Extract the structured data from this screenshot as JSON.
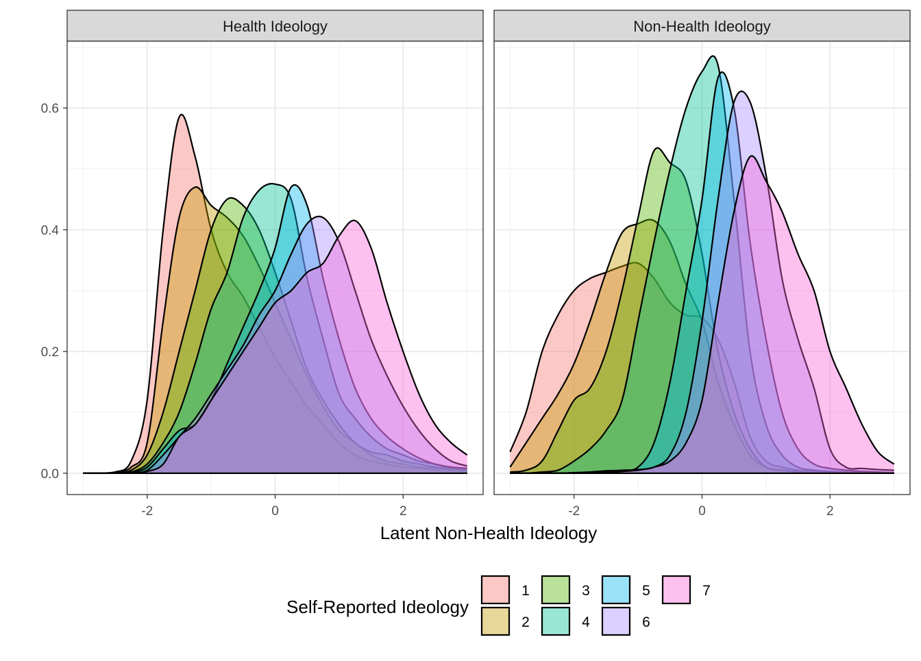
{
  "chart_data": {
    "type": "area",
    "subtype": "density",
    "xlabel": "Latent Non-Health Ideology",
    "ylabel": "",
    "xlim": [
      -3.25,
      3.25
    ],
    "ylim": [
      -0.035,
      0.71
    ],
    "x_ticks": [
      -2,
      0,
      2
    ],
    "x_tick_labels": [
      "-2",
      "0",
      "2"
    ],
    "y_ticks": [
      0,
      0.2,
      0.4,
      0.6
    ],
    "y_tick_labels": [
      "0.0",
      "0.2",
      "0.4",
      "0.6"
    ],
    "grid": true,
    "fill_alpha": 0.4,
    "legend": {
      "title": "Self-Reported Ideology",
      "placement": "bottom",
      "entries": [
        "1",
        "2",
        "3",
        "4",
        "5",
        "6",
        "7"
      ],
      "colors": [
        "#F8766D",
        "#C49A00",
        "#53B400",
        "#00C094",
        "#00B6EB",
        "#A58AFF",
        "#FB61D7"
      ]
    },
    "x": [
      -3,
      -2.75,
      -2.5,
      -2.25,
      -2,
      -1.75,
      -1.5,
      -1.25,
      -1,
      -0.75,
      -0.5,
      -0.25,
      0,
      0.25,
      0.5,
      0.75,
      1,
      1.25,
      1.5,
      1.75,
      2,
      2.25,
      2.5,
      2.75,
      3
    ],
    "panels": [
      {
        "title": "Health Ideology",
        "series": [
          {
            "name": "1",
            "values": [
              0,
              0,
              0.002,
              0.02,
              0.12,
              0.4,
              0.585,
              0.52,
              0.4,
              0.33,
              0.29,
              0.24,
              0.19,
              0.15,
              0.11,
              0.08,
              0.05,
              0.03,
              0.02,
              0.015,
              0.01,
              0.008,
              0.005,
              0.004,
              0.003
            ]
          },
          {
            "name": "2",
            "values": [
              0,
              0,
              0.001,
              0.01,
              0.05,
              0.25,
              0.42,
              0.47,
              0.44,
              0.42,
              0.39,
              0.34,
              0.28,
              0.22,
              0.16,
              0.11,
              0.07,
              0.05,
              0.03,
              0.02,
              0.015,
              0.01,
              0.008,
              0.006,
              0.005
            ]
          },
          {
            "name": "3",
            "values": [
              0,
              0,
              0,
              0.005,
              0.03,
              0.1,
              0.2,
              0.3,
              0.4,
              0.45,
              0.44,
              0.4,
              0.33,
              0.25,
              0.17,
              0.12,
              0.08,
              0.05,
              0.035,
              0.03,
              0.02,
              0.015,
              0.01,
              0.008,
              0.005
            ]
          },
          {
            "name": "4",
            "values": [
              0,
              0,
              0,
              0.002,
              0.015,
              0.05,
              0.1,
              0.18,
              0.27,
              0.33,
              0.42,
              0.465,
              0.475,
              0.45,
              0.32,
              0.22,
              0.13,
              0.09,
              0.06,
              0.04,
              0.03,
              0.02,
              0.015,
              0.01,
              0.008
            ]
          },
          {
            "name": "5",
            "values": [
              0,
              0,
              0,
              0.001,
              0.01,
              0.04,
              0.07,
              0.08,
              0.12,
              0.18,
              0.24,
              0.3,
              0.37,
              0.47,
              0.44,
              0.32,
              0.22,
              0.14,
              0.09,
              0.06,
              0.04,
              0.025,
              0.015,
              0.01,
              0.008
            ]
          },
          {
            "name": "6",
            "values": [
              0,
              0,
              0,
              0,
              0.005,
              0.03,
              0.06,
              0.09,
              0.13,
              0.17,
              0.21,
              0.26,
              0.3,
              0.36,
              0.41,
              0.42,
              0.38,
              0.3,
              0.22,
              0.16,
              0.11,
              0.07,
              0.04,
              0.02,
              0.012
            ]
          },
          {
            "name": "7",
            "values": [
              0,
              0,
              0,
              0,
              0.003,
              0.015,
              0.06,
              0.08,
              0.12,
              0.16,
              0.2,
              0.24,
              0.28,
              0.3,
              0.33,
              0.345,
              0.39,
              0.415,
              0.37,
              0.28,
              0.2,
              0.13,
              0.08,
              0.05,
              0.03
            ]
          }
        ]
      },
      {
        "title": "Non-Health Ideology",
        "series": [
          {
            "name": "1",
            "values": [
              0.035,
              0.1,
              0.2,
              0.26,
              0.3,
              0.32,
              0.33,
              0.34,
              0.345,
              0.32,
              0.28,
              0.26,
              0.255,
              0.22,
              0.15,
              0.06,
              0.02,
              0.01,
              0.005,
              0.003,
              0.002,
              0.001,
              0,
              0,
              0
            ]
          },
          {
            "name": "2",
            "values": [
              0.01,
              0.05,
              0.09,
              0.13,
              0.18,
              0.25,
              0.33,
              0.395,
              0.41,
              0.415,
              0.38,
              0.31,
              0.25,
              0.15,
              0.08,
              0.03,
              0.01,
              0.005,
              0.003,
              0.002,
              0.001,
              0,
              0,
              0,
              0
            ]
          },
          {
            "name": "3",
            "values": [
              0.002,
              0.005,
              0.02,
              0.07,
              0.12,
              0.14,
              0.2,
              0.3,
              0.42,
              0.53,
              0.51,
              0.48,
              0.36,
              0.2,
              0.1,
              0.04,
              0.01,
              0.005,
              0.002,
              0,
              0,
              0,
              0,
              0,
              0
            ]
          },
          {
            "name": "4",
            "values": [
              0,
              0,
              0.002,
              0.005,
              0.02,
              0.04,
              0.07,
              0.12,
              0.25,
              0.38,
              0.5,
              0.6,
              0.66,
              0.67,
              0.45,
              0.2,
              0.08,
              0.03,
              0.01,
              0.005,
              0.003,
              0.002,
              0.001,
              0,
              0
            ]
          },
          {
            "name": "5",
            "values": [
              0,
              0,
              0,
              0,
              0.001,
              0.002,
              0.004,
              0.005,
              0.01,
              0.05,
              0.15,
              0.3,
              0.45,
              0.65,
              0.6,
              0.38,
              0.22,
              0.1,
              0.04,
              0.015,
              0.008,
              0.005,
              0.003,
              0.002,
              0.001
            ]
          },
          {
            "name": "6",
            "values": [
              0,
              0,
              0,
              0,
              0,
              0.001,
              0.002,
              0.004,
              0.006,
              0.01,
              0.03,
              0.1,
              0.25,
              0.45,
              0.61,
              0.61,
              0.49,
              0.32,
              0.22,
              0.14,
              0.04,
              0.01,
              0.008,
              0.006,
              0.005
            ]
          },
          {
            "name": "7",
            "values": [
              0,
              0,
              0,
              0,
              0,
              0,
              0.001,
              0.003,
              0.005,
              0.01,
              0.02,
              0.05,
              0.12,
              0.28,
              0.43,
              0.52,
              0.48,
              0.43,
              0.36,
              0.3,
              0.2,
              0.14,
              0.08,
              0.035,
              0.015
            ]
          }
        ]
      }
    ]
  }
}
